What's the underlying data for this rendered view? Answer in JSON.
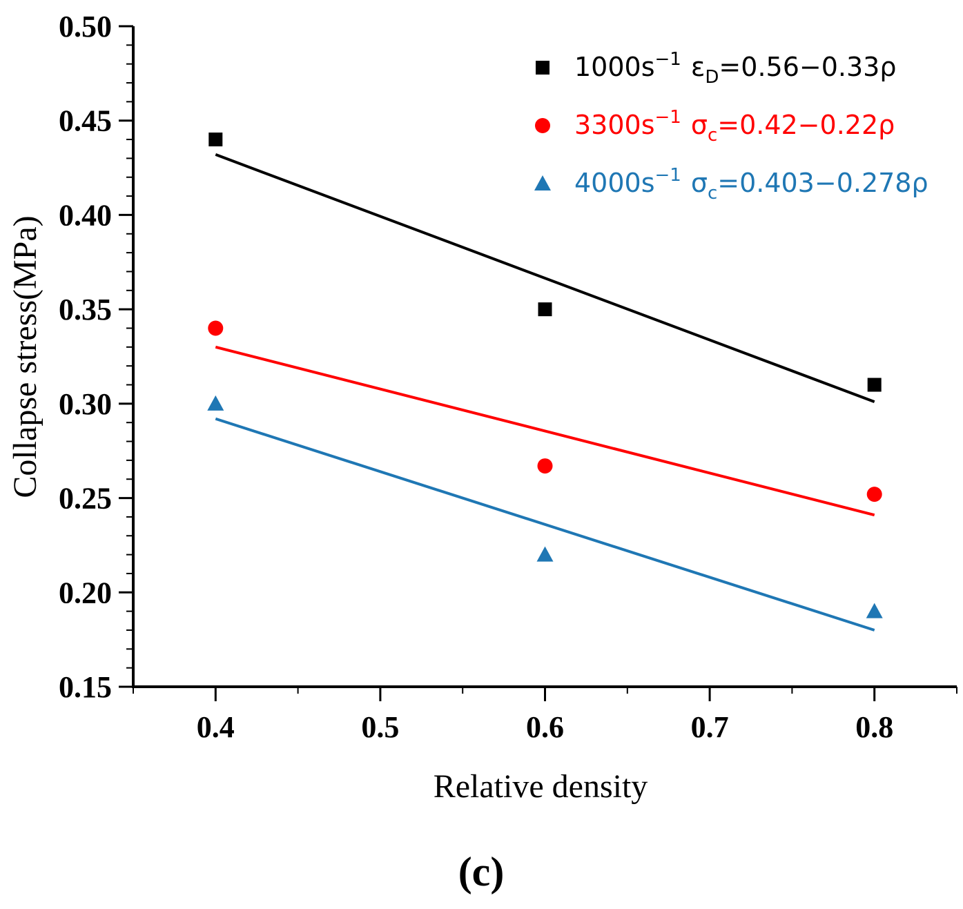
{
  "chart_data": {
    "type": "scatter",
    "xlabel": "Relative density",
    "ylabel": "Collapse stress(MPa)",
    "xlim": [
      0.35,
      0.85
    ],
    "ylim": [
      0.15,
      0.5
    ],
    "x_ticks": [
      "0.4",
      "0.5",
      "0.6",
      "0.7",
      "0.8"
    ],
    "y_ticks": [
      "0.15",
      "0.20",
      "0.25",
      "0.30",
      "0.35",
      "0.40",
      "0.45",
      "0.50"
    ],
    "panel_label": "(c)",
    "series": [
      {
        "name": "1000s",
        "rate_superscript": "−1",
        "equation_symbol": "ε",
        "equation_subscript": "D",
        "equation_rhs": "=0.56−0.33ρ",
        "color": "#000000",
        "marker": "square",
        "x": [
          0.4,
          0.6,
          0.8
        ],
        "values": [
          0.44,
          0.35,
          0.31
        ],
        "fit": {
          "x": [
            0.4,
            0.8
          ],
          "y": [
            0.432,
            0.301
          ]
        }
      },
      {
        "name": "3300s",
        "rate_superscript": "−1",
        "equation_symbol": "σ",
        "equation_subscript": "c",
        "equation_rhs": "=0.42−0.22ρ",
        "color": "#ff0000",
        "marker": "circle",
        "x": [
          0.4,
          0.6,
          0.8
        ],
        "values": [
          0.34,
          0.267,
          0.252
        ],
        "fit": {
          "x": [
            0.4,
            0.8
          ],
          "y": [
            0.33,
            0.241
          ]
        }
      },
      {
        "name": "4000s",
        "rate_superscript": "−1",
        "equation_symbol": "σ",
        "equation_subscript": "c",
        "equation_rhs": "=0.403−0.278ρ",
        "color": "#1f77b4",
        "marker": "triangle",
        "x": [
          0.4,
          0.6,
          0.8
        ],
        "values": [
          0.3,
          0.22,
          0.19
        ],
        "fit": {
          "x": [
            0.4,
            0.8
          ],
          "y": [
            0.292,
            0.18
          ]
        }
      }
    ]
  }
}
